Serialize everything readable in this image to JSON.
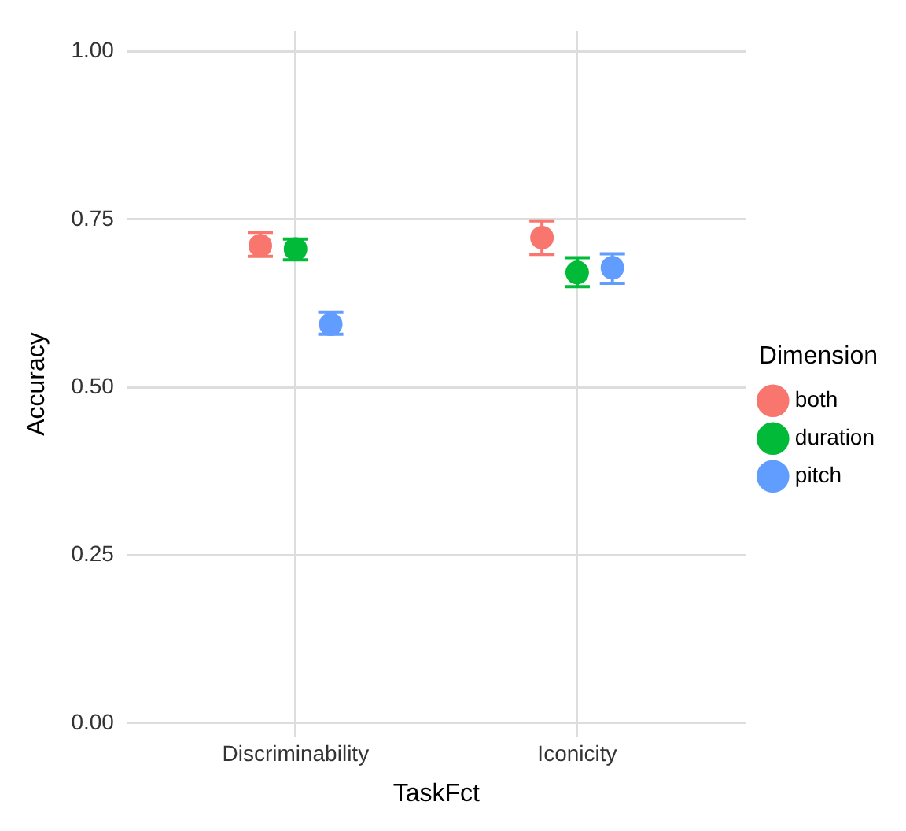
{
  "chart_data": {
    "type": "scatter",
    "xlabel": "TaskFct",
    "ylabel": "Accuracy",
    "legend_title": "Dimension",
    "categories": [
      "Discriminability",
      "Iconicity"
    ],
    "series": [
      {
        "name": "both",
        "color": "#f8766d",
        "x": [
          "Discriminability",
          "Iconicity"
        ],
        "values": [
          0.711,
          0.723
        ],
        "errors": [
          [
            0.695,
            0.731
          ],
          [
            0.698,
            0.748
          ]
        ]
      },
      {
        "name": "duration",
        "color": "#00ba38",
        "x": [
          "Discriminability",
          "Iconicity"
        ],
        "values": [
          0.706,
          0.671
        ],
        "errors": [
          [
            0.69,
            0.721
          ],
          [
            0.65,
            0.693
          ]
        ]
      },
      {
        "name": "pitch",
        "color": "#619cff",
        "x": [
          "Discriminability",
          "Iconicity"
        ],
        "values": [
          0.594,
          0.678
        ],
        "errors": [
          [
            0.579,
            0.612
          ],
          [
            0.655,
            0.699
          ]
        ]
      }
    ],
    "ylim": [
      -0.02,
      1.03
    ],
    "yticks": [
      {
        "value": 0,
        "label": "0.00"
      },
      {
        "value": 0.25,
        "label": "0.25"
      },
      {
        "value": 0.5,
        "label": "0.50"
      },
      {
        "value": 0.75,
        "label": "0.75"
      },
      {
        "value": 1,
        "label": "1.00"
      }
    ],
    "grid": true,
    "legend": "right",
    "marker": "circle"
  }
}
